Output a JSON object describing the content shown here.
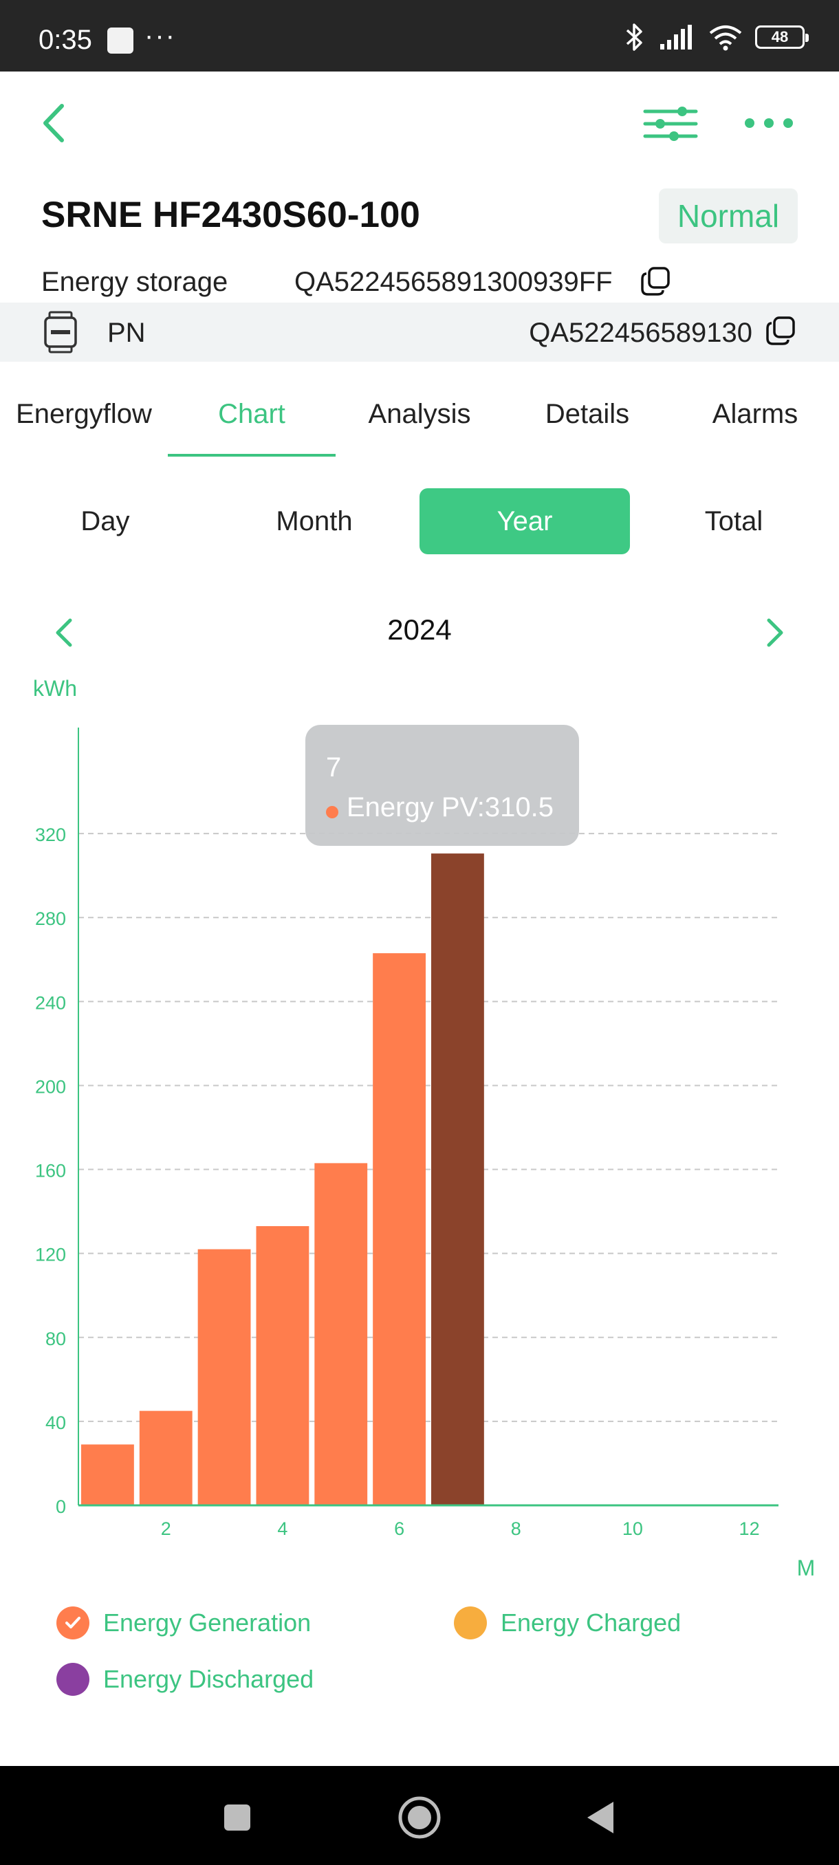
{
  "status_bar": {
    "time": "0:35",
    "dots": "···",
    "battery": "48",
    "icons": [
      "bluetooth-icon",
      "signal-icon",
      "wifi-icon",
      "battery-icon"
    ]
  },
  "header": {
    "icons": [
      "chevron-left-icon",
      "sliders-icon",
      "more-horizontal-icon"
    ]
  },
  "device": {
    "title": "SRNE HF2430S60-100",
    "status": "Normal",
    "type": "Energy storage",
    "serial": "QA5224565891300939FF",
    "pn_label": "PN",
    "pn_value": "QA522456589130"
  },
  "tabs": [
    {
      "label": "Energyflow",
      "active": false
    },
    {
      "label": "Chart",
      "active": true
    },
    {
      "label": "Analysis",
      "active": false
    },
    {
      "label": "Details",
      "active": false
    },
    {
      "label": "Alarms",
      "active": false
    }
  ],
  "segments": [
    {
      "label": "Day",
      "active": false
    },
    {
      "label": "Month",
      "active": false
    },
    {
      "label": "Year",
      "active": true
    },
    {
      "label": "Total",
      "active": false
    }
  ],
  "year": "2024",
  "tooltip": {
    "x": "7",
    "text": "Energy PV:310.5"
  },
  "legend": [
    {
      "label": "Energy Generation",
      "color": "#ff7d4d",
      "checked": true
    },
    {
      "label": "Energy Charged",
      "color": "#f7ad3e",
      "checked": false
    },
    {
      "label": "Energy Discharged",
      "color": "#8a3fa0",
      "checked": false
    }
  ],
  "colors": {
    "accent": "#3cc481",
    "bar": "#ff7d4d",
    "bar_highlight": "#8b432b",
    "axis_text": "#3cc481",
    "grid": "#c8c8c8"
  },
  "chart_data": {
    "type": "bar",
    "ylabel": "kWh",
    "xlabel": "M",
    "x": [
      1,
      2,
      3,
      4,
      5,
      6,
      7,
      8,
      9,
      10,
      11,
      12
    ],
    "xticks": [
      "2",
      "4",
      "6",
      "8",
      "10",
      "12"
    ],
    "yticks": [
      "0",
      "40",
      "80",
      "120",
      "160",
      "200",
      "240",
      "280",
      "320"
    ],
    "ylim": [
      0,
      360
    ],
    "grid": true,
    "series": [
      {
        "name": "Energy PV",
        "values": [
          29,
          45,
          122,
          133,
          163,
          263,
          310.5,
          0,
          0,
          0,
          0,
          0
        ]
      }
    ],
    "highlight_index": 6
  }
}
